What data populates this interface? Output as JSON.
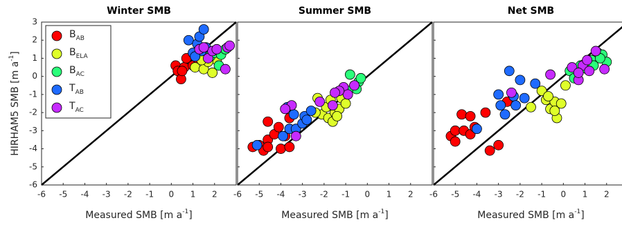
{
  "chart_data": [
    {
      "type": "scatter",
      "title": "Winter SMB",
      "xlabel": [
        "Measured SMB [m a",
        "-1",
        "]"
      ],
      "ylabel": [
        "HIRHAM5 SMB [m a",
        "-1",
        "]"
      ],
      "xlim": [
        -6,
        3
      ],
      "ylim": [
        -6,
        3
      ],
      "xticks": [
        -6,
        -5,
        -4,
        -3,
        -2,
        -1,
        0,
        1,
        2
      ],
      "yticks": [
        -6,
        -5,
        -4,
        -3,
        -2,
        -1,
        0,
        1,
        2,
        3
      ],
      "legend": "upper left",
      "series": [
        {
          "name": [
            "B",
            "AB"
          ],
          "color": "#ff0000",
          "x": [
            0.2,
            0.3,
            0.45,
            0.6,
            0.7,
            0.5,
            1.0,
            1.2
          ],
          "y": [
            0.6,
            0.3,
            -0.15,
            0.5,
            1.0,
            0.3,
            0.6,
            1.0
          ]
        },
        {
          "name": [
            "B",
            "ELA"
          ],
          "color": "#dfff2a",
          "x": [
            1.1,
            1.5,
            1.9,
            2.1,
            1.7,
            1.4
          ],
          "y": [
            0.5,
            0.4,
            0.2,
            0.9,
            0.8,
            0.9
          ]
        },
        {
          "name": [
            "B",
            "AC"
          ],
          "color": "#2bff7a",
          "x": [
            1.8,
            2.0,
            2.3,
            2.2,
            2.5,
            1.6
          ],
          "y": [
            1.1,
            1.3,
            1.2,
            0.6,
            1.5,
            1.4
          ]
        },
        {
          "name": [
            "T",
            "AB"
          ],
          "color": "#1f6bff",
          "x": [
            0.8,
            1.2,
            1.3,
            1.5,
            1.0,
            1.4,
            1.6,
            1.1
          ],
          "y": [
            2.0,
            1.8,
            2.2,
            2.6,
            1.3,
            1.4,
            1.6,
            1.1
          ]
        },
        {
          "name": [
            "T",
            "AC"
          ],
          "color": "#c62bff",
          "x": [
            1.7,
            1.9,
            2.1,
            2.6,
            2.7,
            1.3,
            2.5,
            1.5
          ],
          "y": [
            1.0,
            1.4,
            1.5,
            1.6,
            1.7,
            1.5,
            0.4,
            1.6
          ]
        }
      ]
    },
    {
      "type": "scatter",
      "title": "Summer SMB",
      "xlabel": [
        "Measured SMB [m a",
        "-1",
        "]"
      ],
      "xlim": [
        -6,
        3
      ],
      "ylim": [
        -6,
        3
      ],
      "xticks": [
        -6,
        -5,
        -4,
        -3,
        -2,
        -1,
        0,
        1,
        2
      ],
      "yticks": [
        -6,
        -5,
        -4,
        -3,
        -2,
        -1,
        0,
        1,
        2,
        3
      ],
      "yticklabels": false,
      "series": [
        {
          "color": "#ff0000",
          "x": [
            -5.3,
            -5.0,
            -4.8,
            -4.6,
            -4.6,
            -4.3,
            -4.1,
            -4.0,
            -3.6,
            -4.6,
            -3.8,
            -3.6
          ],
          "y": [
            -3.9,
            -3.8,
            -4.1,
            -3.5,
            -3.9,
            -3.2,
            -2.8,
            -4.0,
            -3.9,
            -2.5,
            -3.3,
            -2.3
          ]
        },
        {
          "color": "#dfff2a",
          "x": [
            -2.3,
            -2.1,
            -1.9,
            -1.8,
            -1.6,
            -1.5,
            -1.3,
            -1.2,
            -1.0,
            -2.4,
            -1.7,
            -1.4
          ],
          "y": [
            -1.2,
            -2.1,
            -1.7,
            -2.3,
            -2.5,
            -2.0,
            -1.8,
            -1.2,
            -1.5,
            -2.0,
            -1.3,
            -2.2
          ]
        },
        {
          "color": "#2bff7a",
          "x": [
            -0.8,
            -0.6,
            -0.4,
            -0.3,
            -0.5,
            -0.9
          ],
          "y": [
            0.1,
            -0.5,
            -0.3,
            -0.1,
            -0.7,
            -0.8
          ]
        },
        {
          "color": "#1f6bff",
          "x": [
            -5.1,
            -3.9,
            -3.6,
            -3.3,
            -3.0,
            -2.9,
            -2.6,
            -3.7,
            -3.4,
            -2.8
          ],
          "y": [
            -3.8,
            -3.3,
            -2.9,
            -2.9,
            -2.6,
            -2.2,
            -1.9,
            -1.7,
            -2.1,
            -2.4
          ]
        },
        {
          "color": "#c62bff",
          "x": [
            -3.5,
            -3.8,
            -2.2,
            -1.6,
            -1.1,
            -0.9,
            -0.6,
            -1.3,
            -1.5,
            -3.3
          ],
          "y": [
            -1.6,
            -1.8,
            -1.4,
            -1.6,
            -0.6,
            -1.0,
            -0.5,
            -0.8,
            -0.9,
            -3.3
          ]
        }
      ]
    },
    {
      "type": "scatter",
      "title": "Net SMB",
      "xlabel": [
        "Measured SMB [m a",
        "-1",
        "]"
      ],
      "xlim": [
        -6,
        3
      ],
      "ylim": [
        -6,
        3
      ],
      "xticks": [
        -6,
        -5,
        -4,
        -3,
        -2,
        -1,
        0,
        1,
        2
      ],
      "yticks": [
        -6,
        -5,
        -4,
        -3,
        -2,
        -1,
        0,
        1,
        2,
        3
      ],
      "yticklabels": false,
      "series": [
        {
          "color": "#ff0000",
          "x": [
            -5.2,
            -5.0,
            -5.0,
            -4.7,
            -4.6,
            -4.3,
            -4.3,
            -4.1,
            -3.6,
            -3.4,
            -3.0,
            -2.6
          ],
          "y": [
            -3.3,
            -3.6,
            -3.0,
            -2.1,
            -3.0,
            -2.2,
            -3.2,
            -2.8,
            -2.0,
            -4.1,
            -3.8,
            -1.4
          ]
        },
        {
          "color": "#dfff2a",
          "x": [
            -1.0,
            -0.8,
            -0.6,
            -0.4,
            -0.3,
            -0.1,
            0.1,
            -1.5,
            -0.7,
            -0.4
          ],
          "y": [
            -0.8,
            -1.3,
            -1.8,
            -1.4,
            -2.3,
            -1.5,
            -0.5,
            -1.7,
            -1.1,
            -1.9
          ]
        },
        {
          "color": "#2bff7a",
          "x": [
            0.3,
            0.5,
            0.8,
            1.1,
            1.3,
            1.6,
            1.8,
            2.0,
            1.4,
            1.7
          ],
          "y": [
            0.3,
            -0.1,
            0.6,
            0.4,
            0.9,
            1.3,
            1.2,
            0.8,
            0.6,
            1.0
          ]
        },
        {
          "color": "#1f6bff",
          "x": [
            -4.0,
            -3.0,
            -2.5,
            -2.3,
            -2.2,
            -2.0,
            -1.8,
            -1.3,
            -2.7,
            -2.9
          ],
          "y": [
            -2.9,
            -1.0,
            0.3,
            -1.1,
            -1.6,
            -0.2,
            -1.2,
            -0.4,
            -2.1,
            -1.6
          ]
        },
        {
          "color": "#c62bff",
          "x": [
            -2.4,
            -0.6,
            0.4,
            0.7,
            0.9,
            1.1,
            1.5,
            1.9,
            0.7,
            1.2
          ],
          "y": [
            -0.9,
            0.1,
            0.5,
            -0.2,
            0.6,
            0.9,
            1.4,
            0.4,
            0.2,
            0.3
          ]
        }
      ]
    }
  ]
}
